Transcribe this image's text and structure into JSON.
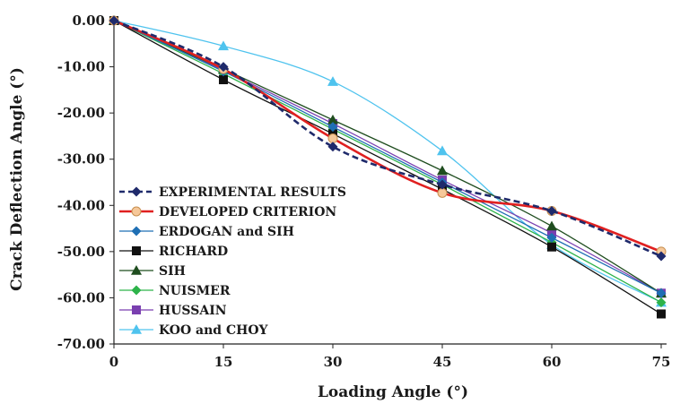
{
  "chart_data": {
    "type": "line",
    "xlabel": "Loading Angle (°)",
    "ylabel": "Crack Deflection Angle (°)",
    "xlim": [
      0,
      75
    ],
    "ylim": [
      -70,
      0
    ],
    "x_ticks": [
      "0",
      "15",
      "30",
      "45",
      "60",
      "75"
    ],
    "y_ticks": [
      "0.00",
      "-10.00",
      "-20.00",
      "-30.00",
      "-40.00",
      "-50.00",
      "-60.00",
      "-70.00"
    ],
    "grid": false,
    "legend_position": "bottom-left",
    "x": [
      0,
      15,
      30,
      45,
      60,
      75
    ],
    "series": [
      {
        "name": "EXPERIMENTAL RESULTS",
        "color": "#1f2a6b",
        "dash": "dashed",
        "marker": "diamond",
        "values": [
          0,
          -10.0,
          -27.3,
          -35.5,
          -41.2,
          -51.0
        ]
      },
      {
        "name": "DEVELOPED CRITERION",
        "color": "#e02020",
        "dash": "solid",
        "marker": "circle",
        "values": [
          0,
          -10.5,
          -25.5,
          -37.3,
          -41.2,
          -50.0
        ]
      },
      {
        "name": "ERDOGAN and SIH",
        "color": "#1f6fb4",
        "dash": "solid",
        "marker": "diamond",
        "values": [
          0,
          -11.0,
          -23.0,
          -35.0,
          -47.0,
          -59.0
        ]
      },
      {
        "name": "RICHARD",
        "color": "#111111",
        "dash": "solid",
        "marker": "square",
        "values": [
          0,
          -12.8,
          -24.5,
          -36.5,
          -49.0,
          -63.5
        ]
      },
      {
        "name": "SIH",
        "color": "#1f4d1f",
        "dash": "solid",
        "marker": "triangle",
        "values": [
          0,
          -10.5,
          -21.5,
          -32.5,
          -44.5,
          -59.0
        ]
      },
      {
        "name": "NUISMER",
        "color": "#2db34a",
        "dash": "solid",
        "marker": "diamond",
        "values": [
          0,
          -11.5,
          -23.5,
          -35.5,
          -48.0,
          -61.0
        ]
      },
      {
        "name": "HUSSAIN",
        "color": "#7a3fb0",
        "dash": "solid",
        "marker": "square",
        "values": [
          0,
          -10.8,
          -22.3,
          -34.5,
          -46.0,
          -59.0
        ]
      },
      {
        "name": "KOO and CHOY",
        "color": "#4fc3ee",
        "dash": "solid",
        "marker": "triangle",
        "values": [
          0,
          -5.5,
          -13.2,
          -28.2,
          -48.5,
          -61.0
        ]
      }
    ]
  }
}
